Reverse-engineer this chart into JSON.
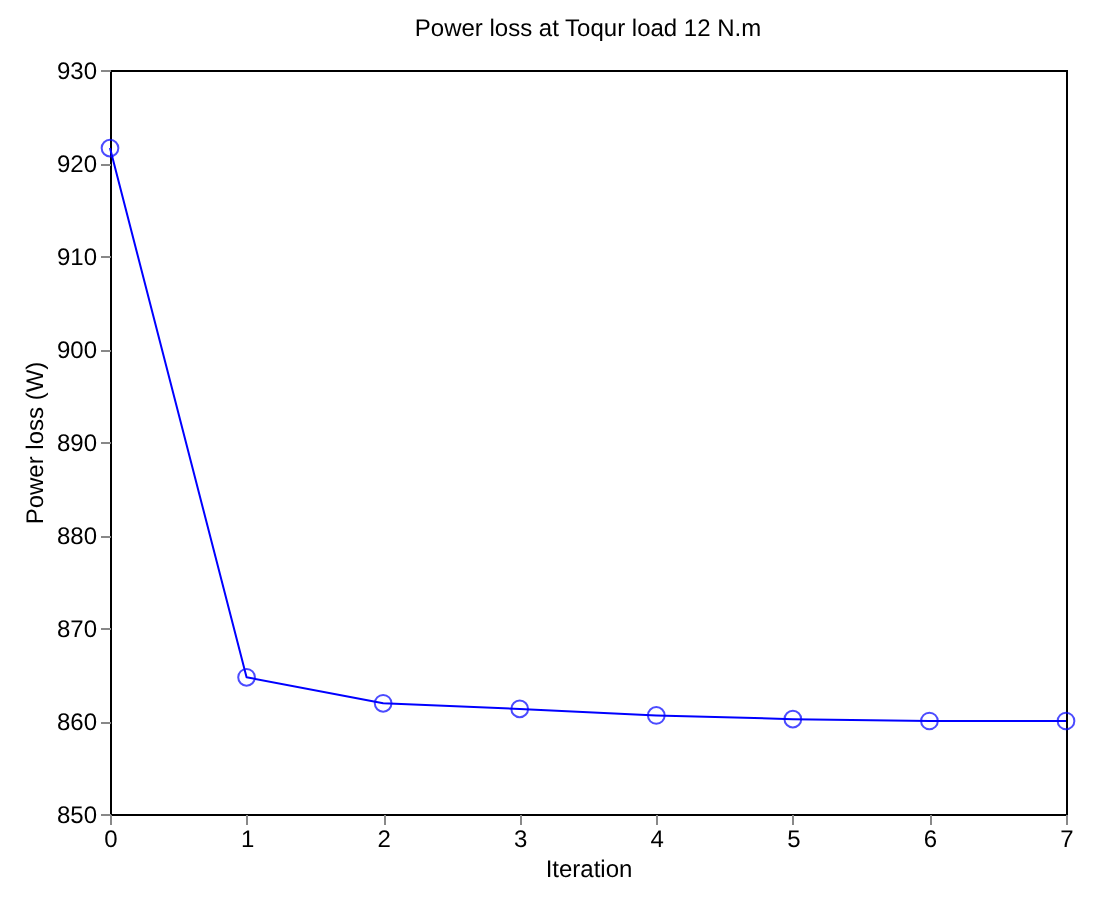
{
  "chart_data": {
    "type": "line",
    "title": "Power loss at Toqur load 12 N.m",
    "xlabel": "Iteration",
    "ylabel": "Power loss (W)",
    "x": [
      0,
      1,
      2,
      3,
      4,
      5,
      6,
      7
    ],
    "series": [
      {
        "color": "#0000ff",
        "values": [
          921.6,
          864.7,
          861.9,
          861.3,
          860.6,
          860.2,
          860.0,
          860.0
        ]
      }
    ],
    "xlim": [
      0,
      7
    ],
    "xticks": [
      0,
      1,
      2,
      3,
      4,
      5,
      6,
      7
    ],
    "ylim": [
      850,
      930
    ],
    "yticks": [
      850,
      860,
      870,
      880,
      890,
      900,
      910,
      920,
      930
    ],
    "grid": false,
    "legend": false,
    "marker": "circle",
    "line_style": "solid"
  }
}
